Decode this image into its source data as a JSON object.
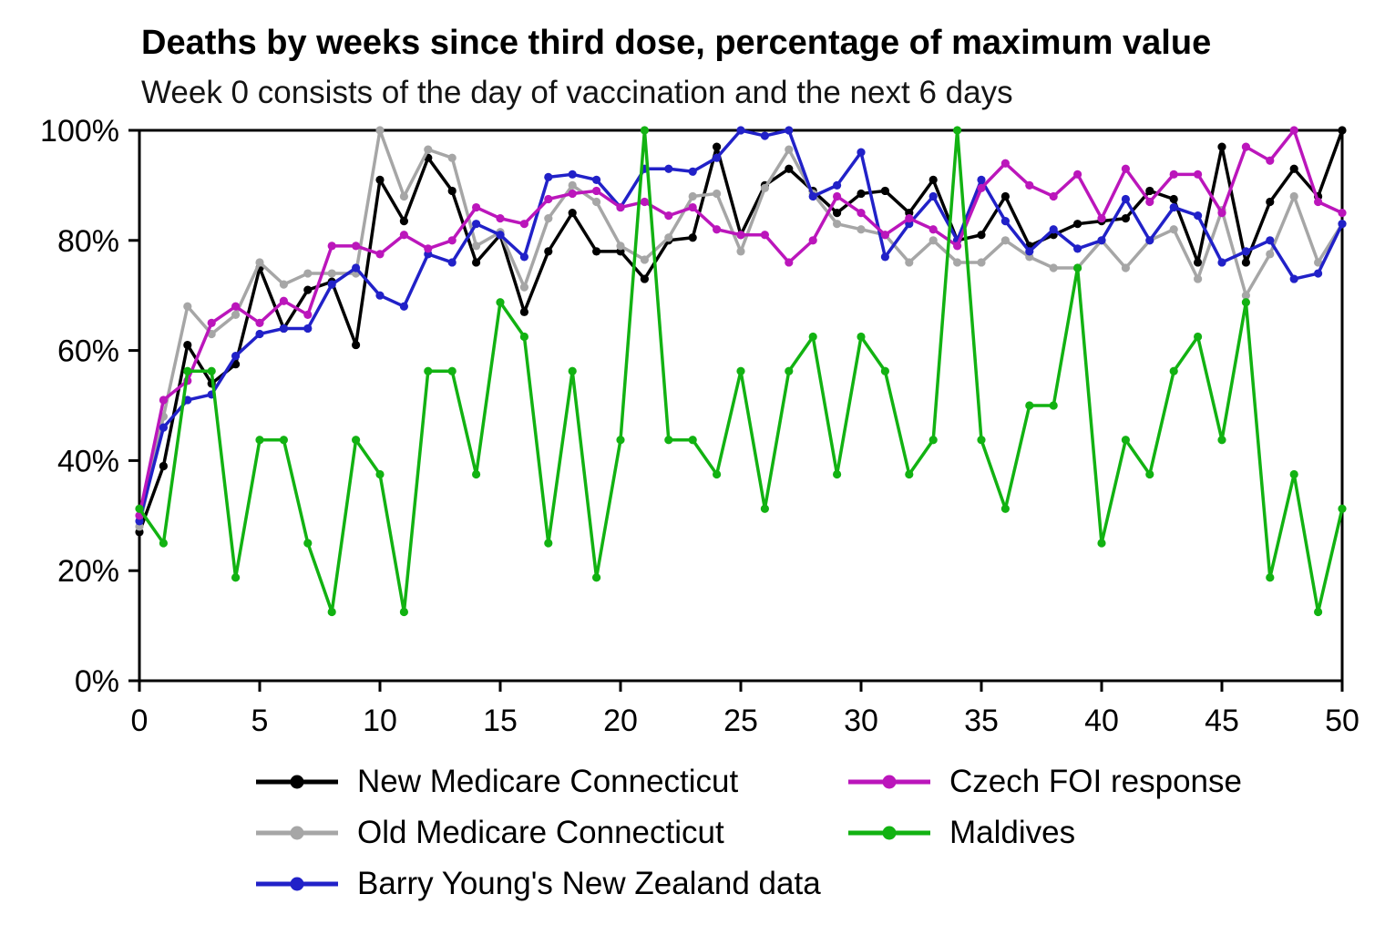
{
  "title": "Deaths by weeks since third dose, percentage of maximum value",
  "subtitle": "Week 0 consists of the day of vaccination and the next 6 days",
  "chart_data": {
    "type": "line",
    "title": "Deaths by weeks since third dose, percentage of maximum value",
    "subtitle": "Week 0 consists of the day of vaccination and the next 6 days",
    "xlabel": "",
    "ylabel": "",
    "xlim": [
      0,
      50
    ],
    "ylim": [
      0,
      100
    ],
    "grid": false,
    "legend_position": "bottom",
    "x": [
      0,
      1,
      2,
      3,
      4,
      5,
      6,
      7,
      8,
      9,
      10,
      11,
      12,
      13,
      14,
      15,
      16,
      17,
      18,
      19,
      20,
      21,
      22,
      23,
      24,
      25,
      26,
      27,
      28,
      29,
      30,
      31,
      32,
      33,
      34,
      35,
      36,
      37,
      38,
      39,
      40,
      41,
      42,
      43,
      44,
      45,
      46,
      47,
      48,
      49,
      50
    ],
    "x_ticks": [
      {
        "v": 0,
        "label": "0"
      },
      {
        "v": 5,
        "label": "5"
      },
      {
        "v": 10,
        "label": "10"
      },
      {
        "v": 15,
        "label": "15"
      },
      {
        "v": 20,
        "label": "20"
      },
      {
        "v": 25,
        "label": "25"
      },
      {
        "v": 30,
        "label": "30"
      },
      {
        "v": 35,
        "label": "35"
      },
      {
        "v": 40,
        "label": "40"
      },
      {
        "v": 45,
        "label": "45"
      },
      {
        "v": 50,
        "label": "50"
      }
    ],
    "y_ticks": [
      {
        "v": 0,
        "label": "0%"
      },
      {
        "v": 20,
        "label": "20%"
      },
      {
        "v": 40,
        "label": "40%"
      },
      {
        "v": 60,
        "label": "60%"
      },
      {
        "v": 80,
        "label": "80%"
      },
      {
        "v": 100,
        "label": "100%"
      }
    ],
    "series": [
      {
        "name": "New Medicare Connecticut",
        "color": "#000000",
        "values": [
          27,
          39,
          61,
          54,
          57.5,
          75,
          64,
          71,
          72.5,
          61,
          91,
          83.5,
          95,
          89,
          76,
          81,
          67,
          78,
          85,
          78,
          78,
          73,
          80,
          80.5,
          97,
          81,
          90,
          93,
          89,
          85,
          88.5,
          89,
          85,
          91,
          80,
          81,
          88,
          79,
          81,
          83,
          83.5,
          84,
          89,
          87.5,
          76,
          97,
          76,
          87,
          93,
          88,
          100
        ]
      },
      {
        "name": "Old Medicare Connecticut",
        "color": "#a6a6a6",
        "values": [
          28,
          48,
          68,
          63,
          66.5,
          76,
          72,
          74,
          74,
          74,
          100,
          88,
          96.5,
          95,
          79,
          81.5,
          71.5,
          84,
          90,
          87,
          79,
          76.5,
          80.5,
          88,
          88.5,
          78,
          89.5,
          96.5,
          88.5,
          83,
          82,
          81,
          76,
          80,
          76,
          76,
          80,
          77,
          75,
          75,
          80,
          75,
          80,
          82,
          73,
          85.5,
          70,
          77.5,
          88,
          76,
          83
        ]
      },
      {
        "name": "Barry Young's New Zealand data",
        "color": "#2121c8",
        "values": [
          29,
          46,
          51,
          52,
          59,
          63,
          64,
          64,
          72,
          75,
          70,
          68,
          77.5,
          76,
          83,
          81,
          77,
          91.5,
          92,
          91,
          86,
          93,
          93,
          92.5,
          95,
          100,
          99,
          100,
          88,
          90,
          96,
          77,
          83,
          88,
          80,
          91,
          83.5,
          78,
          82,
          78.5,
          80,
          87.5,
          80,
          86,
          84.5,
          76,
          78,
          80,
          73,
          74,
          83
        ]
      },
      {
        "name": "Czech FOI response",
        "color": "#bb16bb",
        "values": [
          30,
          51,
          54.5,
          65,
          68,
          65,
          69,
          66.5,
          79,
          79,
          77.5,
          81,
          78.5,
          80,
          86,
          84,
          83,
          87.5,
          88.5,
          89,
          86,
          87,
          84.5,
          86,
          82,
          81,
          81,
          76,
          80,
          88,
          85,
          81,
          84,
          82,
          79,
          89.5,
          94,
          90,
          88,
          92,
          84,
          93,
          87,
          92,
          92,
          85,
          97,
          94.5,
          100,
          87,
          85
        ]
      },
      {
        "name": "Maldives",
        "color": "#12b212",
        "values": [
          31.25,
          25,
          56.25,
          56.25,
          18.75,
          43.75,
          43.75,
          25,
          12.5,
          43.75,
          37.5,
          12.5,
          56.25,
          56.25,
          37.5,
          68.75,
          62.5,
          25,
          56.25,
          18.75,
          43.75,
          100,
          43.75,
          43.75,
          37.5,
          56.25,
          31.25,
          56.25,
          62.5,
          37.5,
          62.5,
          56.25,
          37.5,
          43.75,
          100,
          43.75,
          31.25,
          50,
          50,
          75,
          25,
          43.75,
          37.5,
          56.25,
          62.5,
          43.75,
          68.75,
          18.75,
          37.5,
          12.5,
          31.25
        ]
      }
    ]
  },
  "legend": {
    "items": [
      {
        "label": "New Medicare Connecticut"
      },
      {
        "label": "Old Medicare Connecticut"
      },
      {
        "label": "Barry Young's New Zealand data"
      },
      {
        "label": "Czech FOI response"
      },
      {
        "label": "Maldives"
      }
    ]
  }
}
